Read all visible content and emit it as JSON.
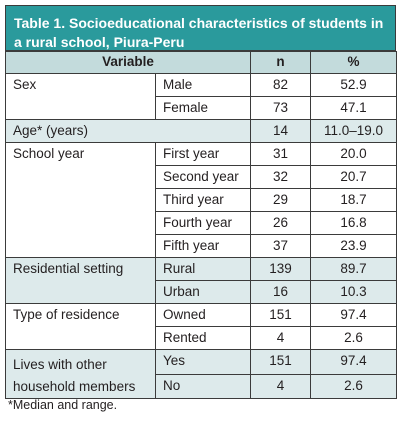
{
  "title": "Table 1. Socioeducational characteristics of students in a rural school, Piura-Peru",
  "headers": {
    "variable": "Variable",
    "n": "n",
    "pct": "%"
  },
  "rows": {
    "sex": {
      "label": "Sex",
      "items": [
        {
          "cat": "Male",
          "n": "82",
          "pct": "52.9"
        },
        {
          "cat": "Female",
          "n": "73",
          "pct": "47.1"
        }
      ]
    },
    "age": {
      "label": "Age* (years)",
      "n": "14",
      "pct": "11.0–19.0"
    },
    "school": {
      "label": "School year",
      "items": [
        {
          "cat": "First year",
          "n": "31",
          "pct": "20.0"
        },
        {
          "cat": "Second year",
          "n": "32",
          "pct": "20.7"
        },
        {
          "cat": "Third year",
          "n": "29",
          "pct": "18.7"
        },
        {
          "cat": "Fourth year",
          "n": "26",
          "pct": "16.8"
        },
        {
          "cat": "Fifth year",
          "n": "37",
          "pct": "23.9"
        }
      ]
    },
    "setting": {
      "label": "Residential setting",
      "items": [
        {
          "cat": "Rural",
          "n": "139",
          "pct": "89.7"
        },
        {
          "cat": "Urban",
          "n": "16",
          "pct": "10.3"
        }
      ]
    },
    "residence": {
      "label": "Type of residence",
      "items": [
        {
          "cat": "Owned",
          "n": "151",
          "pct": "97.4"
        },
        {
          "cat": "Rented",
          "n": "4",
          "pct": "2.6"
        }
      ]
    },
    "household": {
      "label": "Lives with other household members",
      "items": [
        {
          "cat": "Yes",
          "n": "151",
          "pct": "97.4"
        },
        {
          "cat": "No",
          "n": "4",
          "pct": "2.6"
        }
      ]
    }
  },
  "footnote": "*Median and range."
}
